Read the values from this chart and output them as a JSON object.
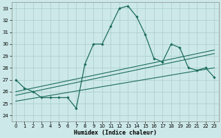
{
  "xlabel": "Humidex (Indice chaleur)",
  "xlim": [
    -0.5,
    23.5
  ],
  "ylim": [
    23.5,
    33.5
  ],
  "yticks": [
    24,
    25,
    26,
    27,
    28,
    29,
    30,
    31,
    32,
    33
  ],
  "xticks": [
    0,
    1,
    2,
    3,
    4,
    5,
    6,
    7,
    8,
    9,
    10,
    11,
    12,
    13,
    14,
    15,
    16,
    17,
    18,
    19,
    20,
    21,
    22,
    23
  ],
  "bg": "#cce8e8",
  "grid_color": "#aacccc",
  "lc": "#1a6b5a",
  "hours": [
    0,
    1,
    2,
    3,
    4,
    5,
    6,
    7,
    8,
    9,
    10,
    11,
    12,
    13,
    14,
    15,
    16,
    17,
    18,
    19,
    20,
    21,
    22,
    23
  ],
  "main_line": [
    27.0,
    26.3,
    26.0,
    25.5,
    25.5,
    25.5,
    25.5,
    24.6,
    28.3,
    30.0,
    30.0,
    31.5,
    33.0,
    33.2,
    32.3,
    30.8,
    28.8,
    28.5,
    30.0,
    29.7,
    28.0,
    27.8,
    28.0,
    27.2
  ],
  "trend1_x": [
    0,
    23
  ],
  "trend1_y": [
    26.0,
    29.5
  ],
  "trend2_x": [
    0,
    23
  ],
  "trend2_y": [
    25.7,
    29.2
  ],
  "trend3_x": [
    0,
    23
  ],
  "trend3_y": [
    25.2,
    28.0
  ]
}
